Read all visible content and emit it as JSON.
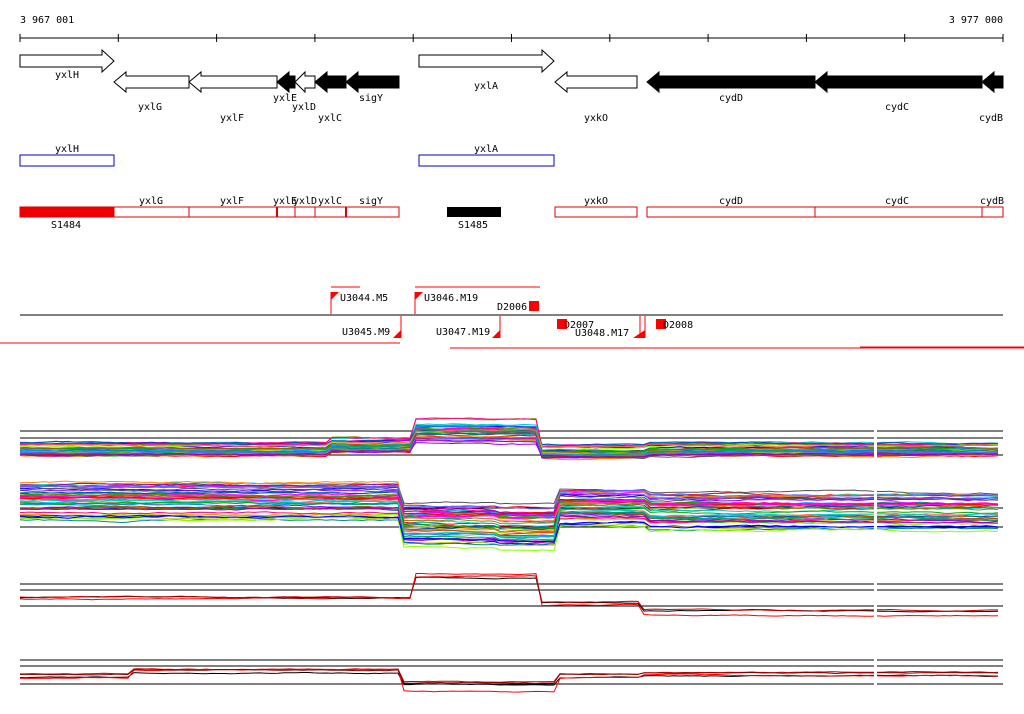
{
  "coords": {
    "start_label": "3 967 001",
    "end_label": "3 977 000",
    "start": 3967001,
    "end": 3977000
  },
  "genes": [
    {
      "name": "yxlH",
      "strand": "+",
      "filled": false
    },
    {
      "name": "yxlG",
      "strand": "-",
      "filled": false
    },
    {
      "name": "yxlF",
      "strand": "-",
      "filled": false
    },
    {
      "name": "yxlE",
      "strand": "-",
      "filled": true
    },
    {
      "name": "yxlD",
      "strand": "-",
      "filled": false
    },
    {
      "name": "yxlC",
      "strand": "-",
      "filled": true
    },
    {
      "name": "sigY",
      "strand": "-",
      "filled": true
    },
    {
      "name": "yxlA",
      "strand": "+",
      "filled": false
    },
    {
      "name": "yxkO",
      "strand": "-",
      "filled": false
    },
    {
      "name": "cydD",
      "strand": "-",
      "filled": true
    },
    {
      "name": "cydC",
      "strand": "-",
      "filled": true
    },
    {
      "name": "cydB",
      "strand": "-",
      "filled": true
    }
  ],
  "plus_track": [
    "yxlH",
    "yxlA"
  ],
  "minus_track": {
    "labels": [
      "yxlG",
      "yxlF",
      "yxlE",
      "yxlD",
      "yxlC",
      "sigY",
      "yxkO",
      "cydD",
      "cydC",
      "cydB"
    ],
    "segments": [
      "S1484",
      "S1485"
    ]
  },
  "tus_upper": [
    "U3044.M5",
    "U3046.M19",
    "D2006"
  ],
  "tus_lower": [
    "U3045.M9",
    "U3047.M19",
    "D2007",
    "U3048.M17",
    "D2008"
  ],
  "colors": {
    "gene_fill": "#000000",
    "plus_box": "#0000cc",
    "minus_box": "#dd0000",
    "tu": "#ff0000",
    "axis": "#000000"
  }
}
